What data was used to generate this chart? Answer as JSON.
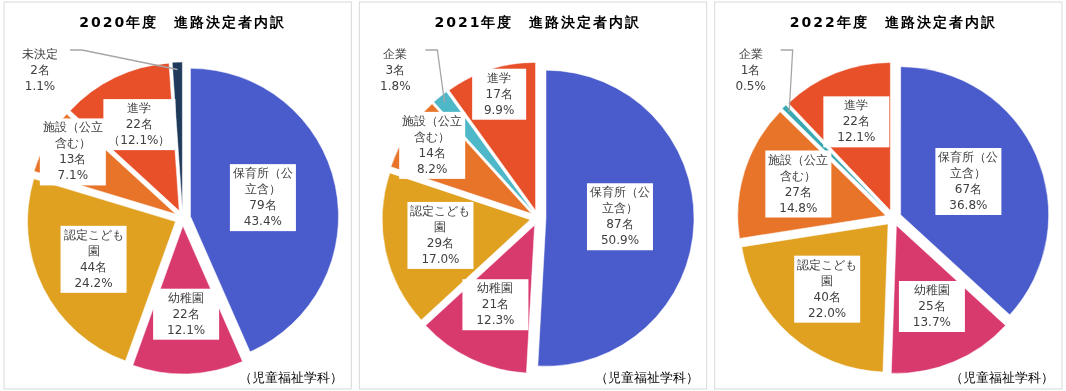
{
  "chart_data": [
    {
      "type": "pie",
      "title": "2020年度　進路決定者内訳",
      "categories": [
        "保育所（公立含）",
        "幼稚園",
        "認定こども園",
        "施設（公立含む）",
        "進学",
        "未決定"
      ],
      "values": [
        79,
        22,
        44,
        13,
        22,
        2
      ],
      "value_labels": [
        "79名43.4%",
        "22名12.1%",
        "44名24.2%",
        "13名7.1%",
        "22名（12.1%）",
        "2名1.1%"
      ],
      "colors": [
        "#4a5ccc",
        "#d93a6e",
        "#e0a020",
        "#e8742a",
        "#e8502a",
        "#1f3a5a"
      ],
      "annotations": [
        "（児童福祉学科）"
      ]
    },
    {
      "type": "pie",
      "title": "2021年度　進路決定者内訳",
      "categories": [
        "保育所（公立含）",
        "幼稚園",
        "認定こども園",
        "施設（公立含む）",
        "企業",
        "進学"
      ],
      "values": [
        87,
        21,
        29,
        14,
        3,
        17
      ],
      "value_labels": [
        "87名50.9%",
        "21名12.3%",
        "29名17.0%",
        "14名8.2%",
        "3名1.8%",
        "17名9.9%"
      ],
      "colors": [
        "#4a5ccc",
        "#d93a6e",
        "#e0a020",
        "#e8742a",
        "#4fb8c8",
        "#e8502a"
      ],
      "annotations": [
        "（児童福祉学科）"
      ]
    },
    {
      "type": "pie",
      "title": "2022年度　進路決定者内訳",
      "categories": [
        "保育所（公立含）",
        "幼稚園",
        "認定こども園",
        "施設（公立含む）",
        "企業",
        "進学"
      ],
      "values": [
        67,
        25,
        40,
        27,
        1,
        22
      ],
      "value_labels": [
        "67名36.8%",
        "25名13.7%",
        "40名22.0%",
        "27名14.8%",
        "1名0.5%",
        "22名12.1%"
      ],
      "colors": [
        "#4a5ccc",
        "#d93a6e",
        "#e0a020",
        "#e8742a",
        "#3aa8b0",
        "#e8502a"
      ],
      "annotations": [
        "（児童福祉学科）"
      ]
    }
  ]
}
